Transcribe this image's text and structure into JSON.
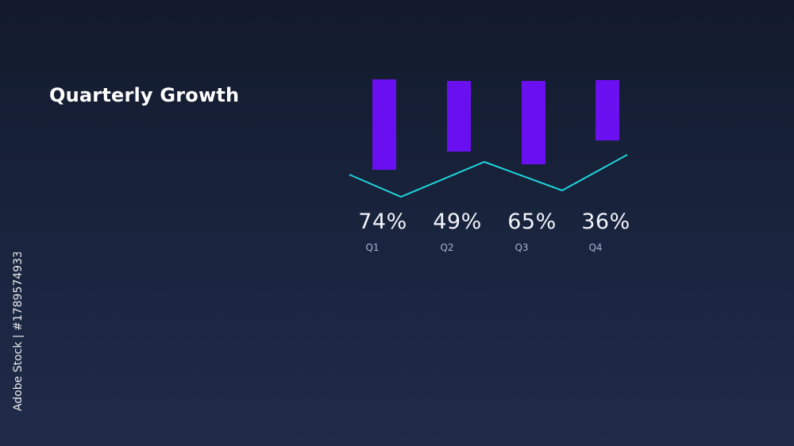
{
  "title": "Quarterly Growth",
  "watermark_id": "Adobe Stock | #1789574933",
  "colors": {
    "bar": "#6a10f0",
    "line": "#1fd3d8",
    "label": "#f2f4fb",
    "category": "#a9b4d6"
  },
  "chart_data": {
    "type": "bar",
    "categories": [
      "Q1",
      "Q2",
      "Q3",
      "Q4"
    ],
    "values": [
      74,
      49,
      65,
      36
    ],
    "value_labels": [
      "74%",
      "49%",
      "65%",
      "36%"
    ],
    "title": "Quarterly Growth",
    "xlabel": "",
    "ylabel": "",
    "grid": false,
    "legend": "none"
  }
}
